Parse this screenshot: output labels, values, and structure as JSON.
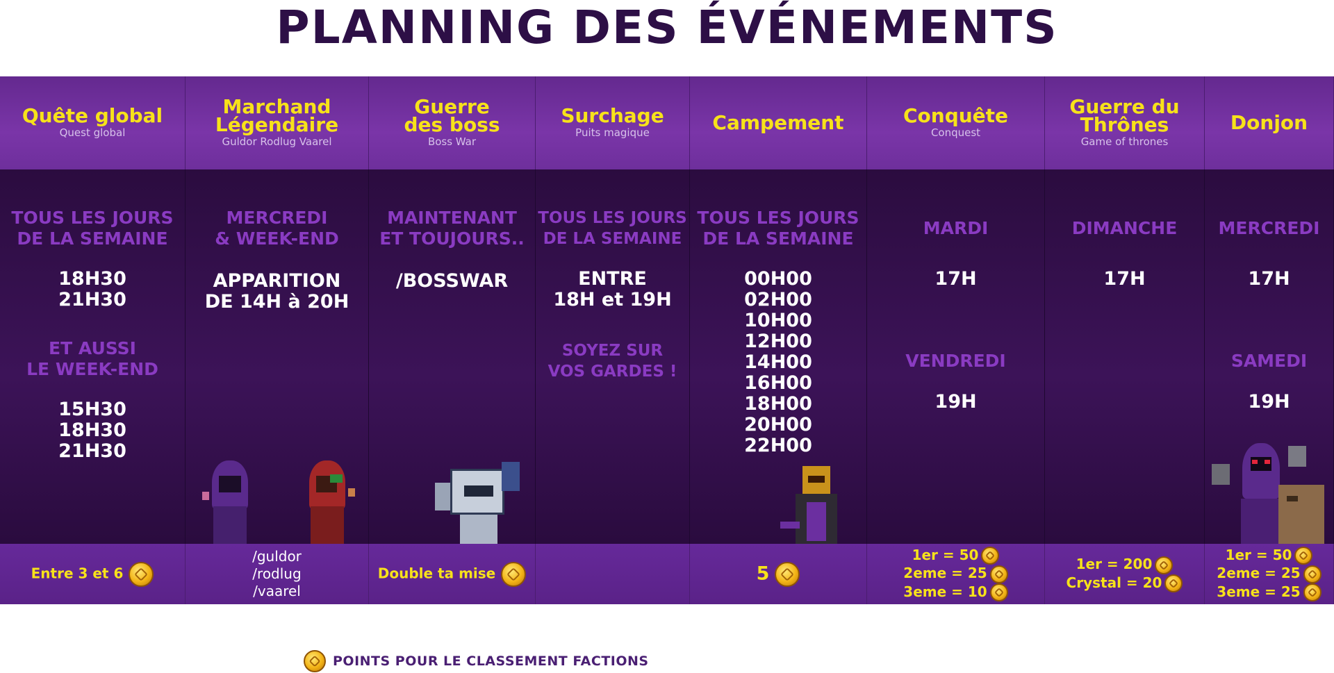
{
  "title": "PLANNING DES ÉVÉNEMENTS",
  "columns": [
    {
      "title": "Quête global",
      "subtitle": "Quest global",
      "day1": [
        "TOUS LES JOURS",
        "DE LA SEMAINE"
      ],
      "times1": [
        "18H30",
        "21H30"
      ],
      "day2": [
        "ET AUSSI",
        "LE WEEK-END"
      ],
      "times2": [
        "15H30",
        "18H30",
        "21H30"
      ],
      "footer": "Entre 3 et 6"
    },
    {
      "title": [
        "Marchand",
        "Légendaire"
      ],
      "subtitle": "Guldor Rodlug Vaarel",
      "day1": [
        "MERCREDI",
        "& WEEK-END"
      ],
      "times1": [
        "APPARITION",
        "DE 14H à 20H"
      ],
      "footer": [
        "/guldor",
        "/rodlug",
        "/vaarel"
      ]
    },
    {
      "title": [
        "Guerre",
        "des boss"
      ],
      "subtitle": "Boss War",
      "day1": [
        "MAINTENANT",
        "ET TOUJOURS.."
      ],
      "times1": [
        "/BOSSWAR"
      ],
      "footer": "Double ta mise"
    },
    {
      "title": "Surchage",
      "subtitle": "Puits magique",
      "day1": [
        "TOUS LES JOURS",
        "DE LA SEMAINE"
      ],
      "times1": [
        "ENTRE",
        "18H et 19H"
      ],
      "day2": [
        "SOYEZ SUR",
        "VOS GARDES !"
      ],
      "footer": ""
    },
    {
      "title": "Campement",
      "subtitle": "",
      "day1": [
        "TOUS LES JOURS",
        "DE LA SEMAINE"
      ],
      "times1": [
        "00H00",
        "02H00",
        "10H00",
        "12H00",
        "14H00",
        "16H00",
        "18H00",
        "20H00",
        "22H00"
      ],
      "footer": "5"
    },
    {
      "title": "Conquête",
      "subtitle": "Conquest",
      "day1": [
        "MARDI"
      ],
      "times1": [
        "17H"
      ],
      "day2": [
        "VENDREDI"
      ],
      "times2": [
        "19H"
      ],
      "footer": [
        "1er = 50",
        "2eme = 25",
        "3eme = 10"
      ]
    },
    {
      "title": [
        "Guerre du",
        "Thrônes"
      ],
      "subtitle": "Game of thrones",
      "day1": [
        "DIMANCHE"
      ],
      "times1": [
        "17H"
      ],
      "footer": [
        "1er = 200",
        "Crystal = 20"
      ]
    },
    {
      "title": "Donjon",
      "subtitle": "",
      "day1": [
        "MERCREDI"
      ],
      "times1": [
        "17H"
      ],
      "day2": [
        "SAMEDI"
      ],
      "times2": [
        "19H"
      ],
      "footer": [
        "1er = 50",
        "2eme = 25",
        "3eme = 25"
      ]
    }
  ],
  "legend": "POINTS POUR LE CLASSEMENT FACTIONS",
  "icons": {
    "coin": "faction-point-coin-icon"
  },
  "colors": {
    "title": "#2d0f46",
    "header_text": "#f7e21a",
    "day_text": "#8a3bc2",
    "header_bg": "#7a35a8",
    "body_bg": "#3c1358"
  }
}
